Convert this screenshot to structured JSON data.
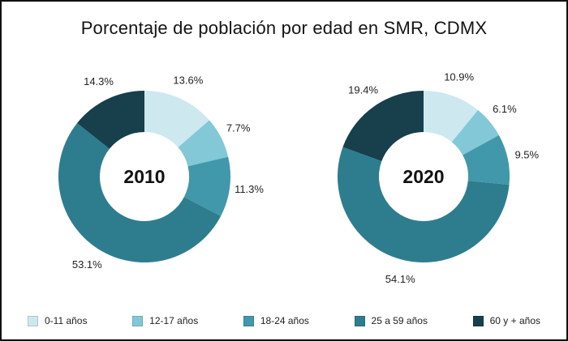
{
  "title": "Porcentaje de población por edad en SMR, CDMX",
  "colors": [
    "#cde9ef",
    "#82c8d6",
    "#4198aa",
    "#2e7d8f",
    "#173f4c"
  ],
  "chart_data": [
    {
      "type": "pie",
      "subtype": "donut",
      "center_label": "2010",
      "categories": [
        "0-11 años",
        "12-17 años",
        "18-24 años",
        "25 a 59 años",
        "60 y + años"
      ],
      "values": [
        13.6,
        7.7,
        11.3,
        53.1,
        14.3
      ],
      "data_labels": [
        "13.6%",
        "7.7%",
        "11.3%",
        "53.1%",
        "14.3%"
      ],
      "legend_position": "bottom"
    },
    {
      "type": "pie",
      "subtype": "donut",
      "center_label": "2020",
      "categories": [
        "0-11 años",
        "12-17 años",
        "18-24 años",
        "25 a 59 años",
        "60 y + años"
      ],
      "values": [
        10.9,
        6.1,
        9.5,
        54.1,
        19.4
      ],
      "data_labels": [
        "10.9%",
        "6.1%",
        "9.5%",
        "54.1%",
        "19.4%"
      ],
      "legend_position": "bottom"
    }
  ],
  "legend": {
    "items": [
      {
        "label": "0-11 años",
        "color": "#cde9ef"
      },
      {
        "label": "12-17 años",
        "color": "#82c8d6"
      },
      {
        "label": "18-24 años",
        "color": "#4198aa"
      },
      {
        "label": "25 a 59 años",
        "color": "#2e7d8f"
      },
      {
        "label": "60 y + años",
        "color": "#173f4c"
      }
    ]
  }
}
